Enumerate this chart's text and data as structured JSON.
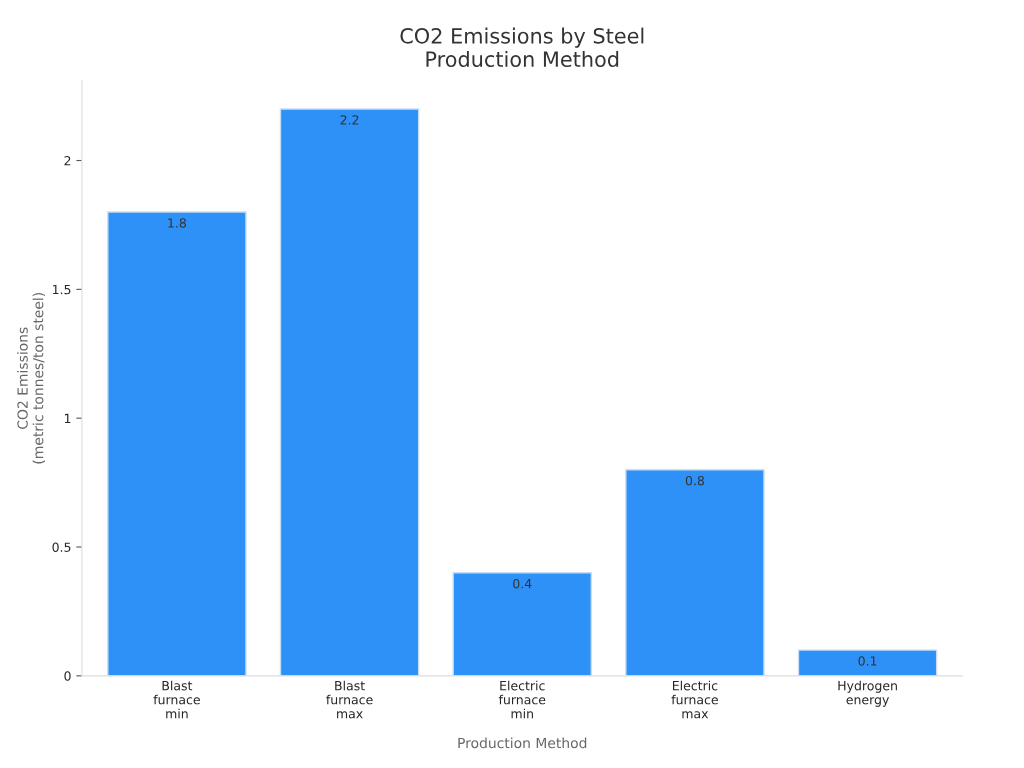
{
  "chart_data": {
    "type": "bar",
    "title": "CO2 Emissions by Steel\nProduction Method",
    "xlabel": "Production Method",
    "ylabel": "CO2 Emissions\n(metric tonnes/ton steel)",
    "categories": [
      "Blast\nfurnace\nmin",
      "Blast\nfurnace\nmax",
      "Electric\nfurnace\nmin",
      "Electric\nfurnace\nmax",
      "Hydrogen\nenergy"
    ],
    "values": [
      1.8,
      2.2,
      0.4,
      0.8,
      0.1
    ],
    "color": "#2e91f7",
    "ylim": [
      0,
      2.31
    ],
    "yticks": [
      0,
      0.5,
      1,
      1.5,
      2
    ],
    "data_labels": true,
    "grid": false,
    "legend": false
  }
}
